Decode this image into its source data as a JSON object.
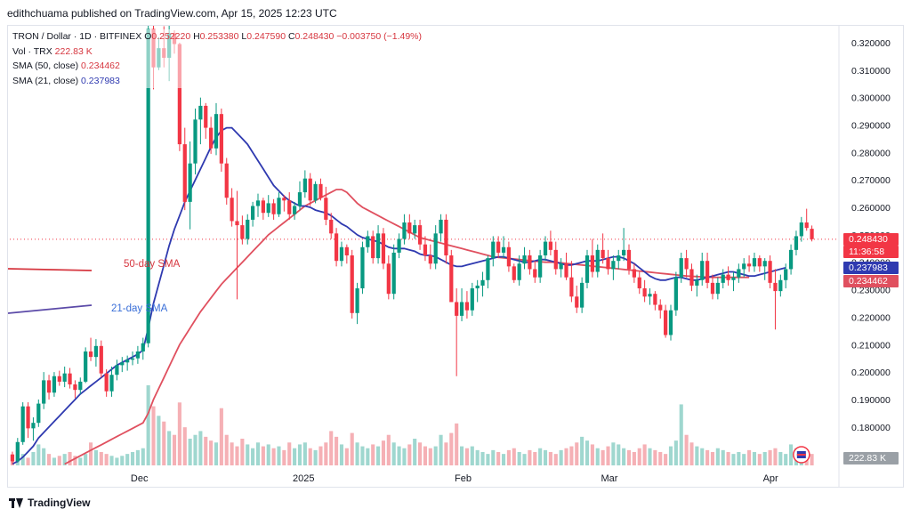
{
  "header": {
    "published_by": "edithchuama published on TradingView.com, Apr 15, 2025 12:23 UTC"
  },
  "legend": {
    "symbol": "TRON / Dollar · 1D · BITFINEX",
    "open_label": "O",
    "open": "0.252220",
    "high_label": "H",
    "high": "0.253380",
    "low_label": "L",
    "low": "0.247590",
    "close_label": "C",
    "close": "0.248430",
    "change": "−0.003750 (−1.49%)",
    "vol_label": "Vol · TRX",
    "vol_value": "222.83 K",
    "sma50_label": "SMA (50, close)",
    "sma50_value": "0.234462",
    "sma21_label": "SMA (21, close)",
    "sma21_value": "0.237983"
  },
  "price_badges": {
    "last_price": "0.248430",
    "countdown": "11:36:58",
    "sma21": "0.237983",
    "sma50": "0.234462",
    "volume": "222.83 K"
  },
  "annotations": {
    "sma50_text": "50-day SMA",
    "sma21_text": "21-day SMA"
  },
  "colors": {
    "up": "#089981",
    "down": "#f23645",
    "sma50": "#e0505f",
    "sma21": "#2f3ab0",
    "vol_up": "#9fd7cf",
    "vol_down": "#f5b0b5",
    "annotation_red": "#d6363f",
    "annotation_blue": "#3a6fd8"
  },
  "footer": {
    "brand": "TradingView"
  },
  "chart_data": {
    "type": "candlestick",
    "y_axis_ticks": [
      "0.320000",
      "0.310000",
      "0.300000",
      "0.290000",
      "0.280000",
      "0.270000",
      "0.260000",
      "0.250000",
      "0.240000",
      "0.230000",
      "0.220000",
      "0.210000",
      "0.200000",
      "0.190000",
      "0.180000"
    ],
    "y_range": [
      0.166,
      0.3255
    ],
    "x_labels": [
      {
        "label": "Dec",
        "index": 24
      },
      {
        "label": "2025",
        "index": 55
      },
      {
        "label": "Feb",
        "index": 86
      },
      {
        "label": "Mar",
        "index": 114
      },
      {
        "label": "Apr",
        "index": 145
      }
    ],
    "candles_ohlc": [
      [
        0.17,
        0.171,
        0.1665,
        0.1675
      ],
      [
        0.1675,
        0.176,
        0.167,
        0.1745
      ],
      [
        0.1745,
        0.189,
        0.1735,
        0.1875
      ],
      [
        0.1875,
        0.189,
        0.176,
        0.1795
      ],
      [
        0.1795,
        0.1835,
        0.175,
        0.1815
      ],
      [
        0.1815,
        0.19,
        0.18,
        0.1885
      ],
      [
        0.1885,
        0.2,
        0.1865,
        0.197
      ],
      [
        0.197,
        0.199,
        0.19,
        0.1925
      ],
      [
        0.1925,
        0.2,
        0.191,
        0.1985
      ],
      [
        0.1985,
        0.2005,
        0.195,
        0.1965
      ],
      [
        0.1965,
        0.202,
        0.1945,
        0.1995
      ],
      [
        0.1995,
        0.2015,
        0.194,
        0.1955
      ],
      [
        0.1955,
        0.197,
        0.1905,
        0.1935
      ],
      [
        0.1935,
        0.198,
        0.192,
        0.1965
      ],
      [
        0.1965,
        0.209,
        0.196,
        0.2075
      ],
      [
        0.2075,
        0.2125,
        0.204,
        0.2055
      ],
      [
        0.2055,
        0.212,
        0.202,
        0.2095
      ],
      [
        0.2095,
        0.2115,
        0.198,
        0.1995
      ],
      [
        0.1995,
        0.201,
        0.191,
        0.193
      ],
      [
        0.193,
        0.202,
        0.191,
        0.199
      ],
      [
        0.199,
        0.2045,
        0.197,
        0.2025
      ],
      [
        0.2025,
        0.2055,
        0.2,
        0.2035
      ],
      [
        0.2035,
        0.206,
        0.2005,
        0.2045
      ],
      [
        0.2045,
        0.2075,
        0.2025,
        0.205
      ],
      [
        0.205,
        0.2095,
        0.203,
        0.2075
      ],
      [
        0.2075,
        0.2125,
        0.2045,
        0.2105
      ],
      [
        0.2105,
        0.33,
        0.209,
        0.325
      ],
      [
        0.325,
        0.3265,
        0.303,
        0.311
      ],
      [
        0.311,
        0.322,
        0.31,
        0.318
      ],
      [
        0.318,
        0.326,
        0.311,
        0.3145
      ],
      [
        0.3145,
        0.3265,
        0.306,
        0.3235
      ],
      [
        0.3235,
        0.3245,
        0.316,
        0.3195
      ],
      [
        0.3195,
        0.32,
        0.2805,
        0.283
      ],
      [
        0.283,
        0.289,
        0.259,
        0.262
      ],
      [
        0.262,
        0.284,
        0.252,
        0.276
      ],
      [
        0.276,
        0.296,
        0.272,
        0.292
      ],
      [
        0.292,
        0.3,
        0.283,
        0.297
      ],
      [
        0.297,
        0.298,
        0.285,
        0.289
      ],
      [
        0.289,
        0.293,
        0.2795,
        0.2815
      ],
      [
        0.2815,
        0.298,
        0.279,
        0.294
      ],
      [
        0.294,
        0.296,
        0.273,
        0.276
      ],
      [
        0.276,
        0.278,
        0.261,
        0.2635
      ],
      [
        0.2635,
        0.267,
        0.253,
        0.255
      ],
      [
        0.255,
        0.266,
        0.2265,
        0.2535
      ],
      [
        0.2535,
        0.257,
        0.2465,
        0.2485
      ],
      [
        0.2485,
        0.2575,
        0.2465,
        0.2555
      ],
      [
        0.2555,
        0.262,
        0.253,
        0.2605
      ],
      [
        0.2605,
        0.265,
        0.2565,
        0.2625
      ],
      [
        0.2625,
        0.2635,
        0.2555,
        0.258
      ],
      [
        0.258,
        0.2645,
        0.2565,
        0.2615
      ],
      [
        0.2615,
        0.263,
        0.2555,
        0.2575
      ],
      [
        0.2575,
        0.2655,
        0.2565,
        0.2635
      ],
      [
        0.2635,
        0.2645,
        0.2585,
        0.2625
      ],
      [
        0.2625,
        0.2655,
        0.2555,
        0.2575
      ],
      [
        0.2575,
        0.262,
        0.2555,
        0.2605
      ],
      [
        0.2605,
        0.2695,
        0.259,
        0.2655
      ],
      [
        0.2655,
        0.2735,
        0.2635,
        0.2705
      ],
      [
        0.2705,
        0.2725,
        0.2605,
        0.2625
      ],
      [
        0.2625,
        0.2695,
        0.2615,
        0.2685
      ],
      [
        0.2685,
        0.2705,
        0.2625,
        0.2635
      ],
      [
        0.2635,
        0.2675,
        0.2535,
        0.2555
      ],
      [
        0.2555,
        0.258,
        0.2485,
        0.2505
      ],
      [
        0.2505,
        0.2525,
        0.2385,
        0.2405
      ],
      [
        0.2405,
        0.2475,
        0.2385,
        0.2455
      ],
      [
        0.2455,
        0.2465,
        0.2395,
        0.2425
      ],
      [
        0.2425,
        0.2445,
        0.2195,
        0.2215
      ],
      [
        0.2215,
        0.2325,
        0.2175,
        0.2305
      ],
      [
        0.2305,
        0.2475,
        0.2285,
        0.2455
      ],
      [
        0.2455,
        0.2515,
        0.2435,
        0.2495
      ],
      [
        0.2495,
        0.2515,
        0.2395,
        0.2415
      ],
      [
        0.2415,
        0.2535,
        0.2395,
        0.2505
      ],
      [
        0.2505,
        0.2525,
        0.2375,
        0.2395
      ],
      [
        0.2395,
        0.2425,
        0.2265,
        0.2285
      ],
      [
        0.2285,
        0.2465,
        0.2265,
        0.2435
      ],
      [
        0.2435,
        0.2505,
        0.2415,
        0.2485
      ],
      [
        0.2485,
        0.2575,
        0.2465,
        0.2545
      ],
      [
        0.2545,
        0.2575,
        0.2485,
        0.2505
      ],
      [
        0.2505,
        0.2555,
        0.2485,
        0.2535
      ],
      [
        0.2535,
        0.2555,
        0.2445,
        0.2465
      ],
      [
        0.2465,
        0.2495,
        0.2405,
        0.2425
      ],
      [
        0.2425,
        0.2465,
        0.2375,
        0.2395
      ],
      [
        0.2395,
        0.2535,
        0.2375,
        0.2505
      ],
      [
        0.2505,
        0.2575,
        0.2475,
        0.2555
      ],
      [
        0.2555,
        0.2575,
        0.2395,
        0.2425
      ],
      [
        0.2425,
        0.2445,
        0.2295,
        0.2255
      ],
      [
        0.2255,
        0.2305,
        0.1985,
        0.2205
      ],
      [
        0.2205,
        0.2305,
        0.2185,
        0.2255
      ],
      [
        0.2255,
        0.2295,
        0.2195,
        0.2225
      ],
      [
        0.2225,
        0.2325,
        0.2205,
        0.2305
      ],
      [
        0.2305,
        0.2335,
        0.2255,
        0.2315
      ],
      [
        0.2315,
        0.2365,
        0.2275,
        0.2335
      ],
      [
        0.2335,
        0.2425,
        0.2305,
        0.2415
      ],
      [
        0.2415,
        0.2495,
        0.2385,
        0.2475
      ],
      [
        0.2475,
        0.2495,
        0.2415,
        0.2435
      ],
      [
        0.2435,
        0.2495,
        0.2415,
        0.2455
      ],
      [
        0.2455,
        0.2475,
        0.2365,
        0.2385
      ],
      [
        0.2385,
        0.2395,
        0.2325,
        0.2335
      ],
      [
        0.2335,
        0.2425,
        0.2315,
        0.2395
      ],
      [
        0.2395,
        0.2455,
        0.2375,
        0.2425
      ],
      [
        0.2425,
        0.2445,
        0.2355,
        0.2375
      ],
      [
        0.2375,
        0.2405,
        0.2325,
        0.2345
      ],
      [
        0.2345,
        0.2445,
        0.2325,
        0.2425
      ],
      [
        0.2425,
        0.2495,
        0.2405,
        0.2475
      ],
      [
        0.2475,
        0.2515,
        0.2425,
        0.2445
      ],
      [
        0.2445,
        0.2475,
        0.2355,
        0.2375
      ],
      [
        0.2375,
        0.2415,
        0.2345,
        0.2395
      ],
      [
        0.2395,
        0.2435,
        0.2335,
        0.2345
      ],
      [
        0.2345,
        0.2405,
        0.2255,
        0.2275
      ],
      [
        0.2275,
        0.2315,
        0.2215,
        0.2235
      ],
      [
        0.2235,
        0.2345,
        0.2215,
        0.2325
      ],
      [
        0.2325,
        0.2445,
        0.2305,
        0.2425
      ],
      [
        0.2425,
        0.2485,
        0.2345,
        0.2365
      ],
      [
        0.2365,
        0.2465,
        0.2345,
        0.2445
      ],
      [
        0.2445,
        0.2505,
        0.2395,
        0.2415
      ],
      [
        0.2415,
        0.2445,
        0.2355,
        0.2375
      ],
      [
        0.2375,
        0.2425,
        0.2335,
        0.2405
      ],
      [
        0.2405,
        0.2445,
        0.2375,
        0.2425
      ],
      [
        0.2425,
        0.2525,
        0.2405,
        0.2445
      ],
      [
        0.2445,
        0.2465,
        0.2355,
        0.2375
      ],
      [
        0.2375,
        0.2395,
        0.2325,
        0.2345
      ],
      [
        0.2345,
        0.2365,
        0.2285,
        0.2305
      ],
      [
        0.2305,
        0.2335,
        0.2255,
        0.2275
      ],
      [
        0.2275,
        0.2305,
        0.2245,
        0.2285
      ],
      [
        0.2285,
        0.2295,
        0.2225,
        0.2245
      ],
      [
        0.2245,
        0.2265,
        0.2195,
        0.2225
      ],
      [
        0.2225,
        0.2245,
        0.2125,
        0.2135
      ],
      [
        0.2135,
        0.2245,
        0.2115,
        0.2225
      ],
      [
        0.2225,
        0.2365,
        0.2205,
        0.2345
      ],
      [
        0.2345,
        0.2435,
        0.2325,
        0.2415
      ],
      [
        0.2415,
        0.2445,
        0.2345,
        0.2375
      ],
      [
        0.2375,
        0.2395,
        0.2295,
        0.2315
      ],
      [
        0.2315,
        0.2355,
        0.2275,
        0.2335
      ],
      [
        0.2335,
        0.2435,
        0.2315,
        0.2405
      ],
      [
        0.2405,
        0.2435,
        0.2305,
        0.2325
      ],
      [
        0.2325,
        0.2355,
        0.2265,
        0.2285
      ],
      [
        0.2285,
        0.2345,
        0.2265,
        0.2325
      ],
      [
        0.2325,
        0.2375,
        0.2305,
        0.2355
      ],
      [
        0.2355,
        0.2385,
        0.2315,
        0.2335
      ],
      [
        0.2335,
        0.2365,
        0.2295,
        0.2345
      ],
      [
        0.2345,
        0.2395,
        0.2325,
        0.2375
      ],
      [
        0.2375,
        0.2415,
        0.2345,
        0.2395
      ],
      [
        0.2395,
        0.2425,
        0.2365,
        0.2385
      ],
      [
        0.2385,
        0.2435,
        0.2365,
        0.2415
      ],
      [
        0.2415,
        0.2425,
        0.2365,
        0.2385
      ],
      [
        0.2385,
        0.2415,
        0.2335,
        0.2405
      ],
      [
        0.2405,
        0.2425,
        0.2305,
        0.2325
      ],
      [
        0.2325,
        0.2375,
        0.2155,
        0.2295
      ],
      [
        0.2295,
        0.2355,
        0.2275,
        0.2335
      ],
      [
        0.2335,
        0.2395,
        0.2305,
        0.2375
      ],
      [
        0.2375,
        0.2465,
        0.2355,
        0.2445
      ],
      [
        0.2445,
        0.2515,
        0.2425,
        0.2495
      ],
      [
        0.2495,
        0.2565,
        0.2475,
        0.2545
      ],
      [
        0.2545,
        0.2595,
        0.2515,
        0.2525
      ],
      [
        0.2522,
        0.2534,
        0.2476,
        0.2484
      ]
    ],
    "volume_k": [
      50,
      80,
      60,
      40,
      70,
      110,
      90,
      60,
      40,
      50,
      60,
      70,
      50,
      40,
      60,
      120,
      80,
      70,
      60,
      50,
      40,
      50,
      60,
      70,
      80,
      90,
      420,
      310,
      260,
      230,
      180,
      160,
      330,
      200,
      140,
      160,
      180,
      150,
      130,
      120,
      300,
      160,
      120,
      100,
      140,
      110,
      90,
      120,
      100,
      110,
      90,
      100,
      80,
      120,
      90,
      110,
      120,
      90,
      80,
      100,
      120,
      180,
      150,
      110,
      90,
      170,
      120,
      100,
      90,
      110,
      100,
      130,
      160,
      120,
      100,
      90,
      110,
      140,
      120,
      100,
      90,
      100,
      160,
      120,
      170,
      220,
      100,
      90,
      100,
      80,
      70,
      60,
      80,
      70,
      60,
      80,
      90,
      70,
      60,
      80,
      70,
      90,
      80,
      70,
      60,
      80,
      90,
      100,
      120,
      150,
      130,
      110,
      90,
      80,
      100,
      120,
      110,
      90,
      80,
      70,
      90,
      110,
      90,
      80,
      70,
      60,
      100,
      130,
      320,
      160,
      120,
      100,
      90,
      80,
      70,
      90,
      80,
      70,
      60,
      70,
      60,
      80,
      70,
      60,
      70,
      80,
      90,
      70,
      60,
      110,
      90,
      70,
      80,
      60,
      50
    ],
    "sma21": [
      0.1665,
      0.1675,
      0.169,
      0.171,
      0.173,
      0.176,
      0.178,
      0.18,
      0.182,
      0.184,
      0.186,
      0.188,
      0.19,
      0.192,
      0.1935,
      0.195,
      0.1965,
      0.198,
      0.1995,
      0.201,
      0.2025,
      0.2035,
      0.2045,
      0.2055,
      0.2065,
      0.208,
      0.216,
      0.225,
      0.232,
      0.239,
      0.246,
      0.252,
      0.257,
      0.262,
      0.266,
      0.27,
      0.274,
      0.278,
      0.282,
      0.2855,
      0.288,
      0.289,
      0.289,
      0.287,
      0.285,
      0.283,
      0.28,
      0.277,
      0.274,
      0.271,
      0.268,
      0.266,
      0.264,
      0.2625,
      0.2615,
      0.2605,
      0.2605,
      0.26,
      0.259,
      0.2585,
      0.258,
      0.257,
      0.2555,
      0.254,
      0.253,
      0.2515,
      0.25,
      0.249,
      0.2485,
      0.248,
      0.2475,
      0.2465,
      0.2455,
      0.245,
      0.245,
      0.245,
      0.2445,
      0.244,
      0.243,
      0.2425,
      0.2425,
      0.242,
      0.241,
      0.24,
      0.239,
      0.2385,
      0.2385,
      0.239,
      0.2395,
      0.24,
      0.2405,
      0.241,
      0.2415,
      0.242,
      0.242,
      0.2415,
      0.241,
      0.2405,
      0.24,
      0.24,
      0.2405,
      0.241,
      0.241,
      0.2405,
      0.24,
      0.2395,
      0.239,
      0.239,
      0.2395,
      0.24,
      0.2405,
      0.2405,
      0.2405,
      0.241,
      0.2415,
      0.242,
      0.242,
      0.2415,
      0.2405,
      0.2395,
      0.238,
      0.2365,
      0.235,
      0.234,
      0.2335,
      0.2335,
      0.234,
      0.2345,
      0.2345,
      0.234,
      0.2335,
      0.2335,
      0.234,
      0.2345,
      0.235,
      0.2355,
      0.236,
      0.2365,
      0.2365,
      0.236,
      0.2355,
      0.235,
      0.235,
      0.2355,
      0.236,
      0.2365,
      0.237,
      0.2375,
      0.238
    ],
    "sma50": [
      null,
      null,
      null,
      null,
      null,
      null,
      null,
      null,
      null,
      null,
      0.1665,
      0.1675,
      0.1685,
      0.1695,
      0.1705,
      0.1715,
      0.1725,
      0.1735,
      0.1745,
      0.1755,
      0.1765,
      0.1775,
      0.1785,
      0.1795,
      0.1805,
      0.1815,
      0.185,
      0.19,
      0.194,
      0.198,
      0.202,
      0.206,
      0.21,
      0.213,
      0.216,
      0.219,
      0.222,
      0.2245,
      0.227,
      0.2295,
      0.232,
      0.234,
      0.236,
      0.238,
      0.24,
      0.242,
      0.244,
      0.246,
      0.248,
      0.25,
      0.2515,
      0.253,
      0.2545,
      0.256,
      0.2575,
      0.259,
      0.2605,
      0.2615,
      0.2625,
      0.2635,
      0.2645,
      0.2655,
      0.2665,
      0.2665,
      0.2655,
      0.2635,
      0.2615,
      0.26,
      0.259,
      0.258,
      0.257,
      0.256,
      0.255,
      0.254,
      0.253,
      0.252,
      0.251,
      0.25,
      0.249,
      0.2485,
      0.248,
      0.2475,
      0.247,
      0.2465,
      0.246,
      0.2455,
      0.245,
      0.2445,
      0.244,
      0.2435,
      0.243,
      0.2425,
      0.242,
      0.2418,
      0.2416,
      0.2414,
      0.2412,
      0.241,
      0.2408,
      0.2406,
      0.2404,
      0.2402,
      0.24,
      0.24,
      0.24,
      0.2398,
      0.2396,
      0.2394,
      0.2392,
      0.239,
      0.2388,
      0.2386,
      0.2384,
      0.2382,
      0.238,
      0.2378,
      0.2376,
      0.2374,
      0.2372,
      0.237,
      0.2368,
      0.2366,
      0.2364,
      0.2362,
      0.236,
      0.2358,
      0.2356,
      0.2354,
      0.2352,
      0.235,
      0.2349,
      0.2348,
      0.2347,
      0.2346,
      0.2345,
      0.2345,
      0.2345,
      0.2345,
      0.2345,
      0.2345,
      0.2345,
      0.2345
    ]
  }
}
